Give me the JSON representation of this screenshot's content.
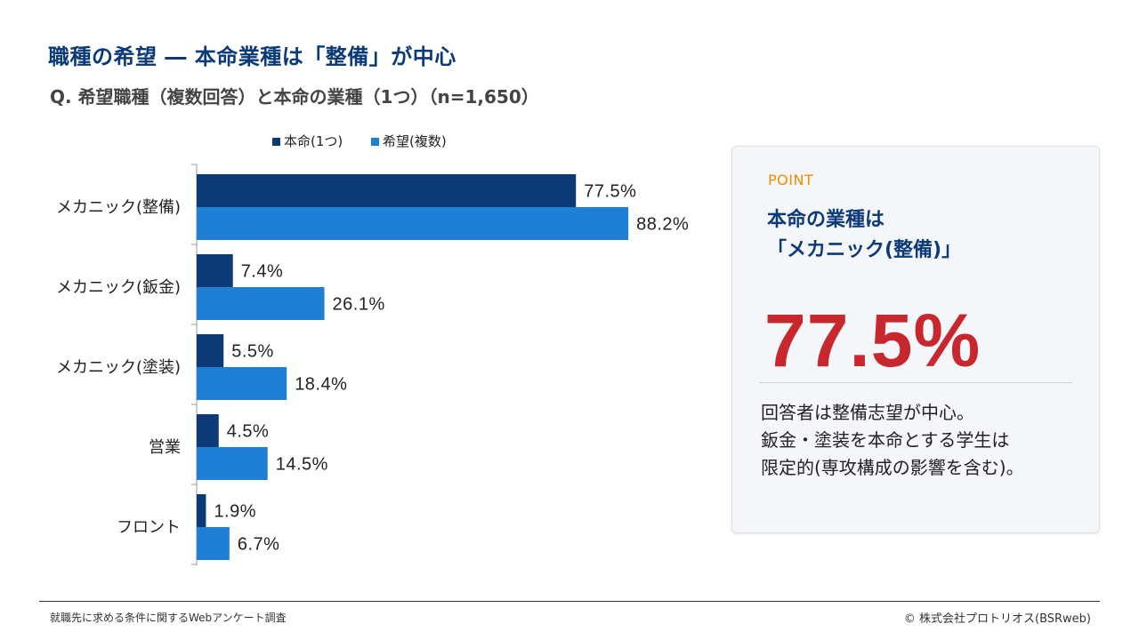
{
  "header": {
    "title": "職種の希望 ― 本命業種は「整備」が中心",
    "subtitle": "Q. 希望職種（複数回答）と本命の業種（1つ）（n=1,650）"
  },
  "chart_data": {
    "type": "bar",
    "orientation": "horizontal",
    "categories": [
      "メカニック(整備)",
      "メカニック(鈑金)",
      "メカニック(塗装)",
      "営業",
      "フロント"
    ],
    "series": [
      {
        "name": "本命(1つ)",
        "values": [
          77.5,
          7.4,
          5.5,
          4.5,
          1.9
        ],
        "color": "#0d3a75"
      },
      {
        "name": "希望(複数)",
        "values": [
          88.2,
          26.1,
          18.4,
          14.5,
          6.7
        ],
        "color": "#1f7fd4"
      }
    ],
    "value_suffix": "%",
    "xlim": [
      0,
      100
    ],
    "grid": false,
    "legend_position": "top"
  },
  "panel": {
    "label": "POINT",
    "title_line1": "本命の業種は",
    "title_line2": "「メカニック(整備)」",
    "value": "77.5%",
    "text_line1": "回答者は整備志望が中心。",
    "text_line2": "鈑金・塗装を本命とする学生は",
    "text_line3": "限定的(専攻構成の影響を含む)。"
  },
  "footer": {
    "source": "就職先に求める条件に関するWebアンケート調査",
    "copyright": "©  株式会社プロトリオス(BSRweb)"
  }
}
